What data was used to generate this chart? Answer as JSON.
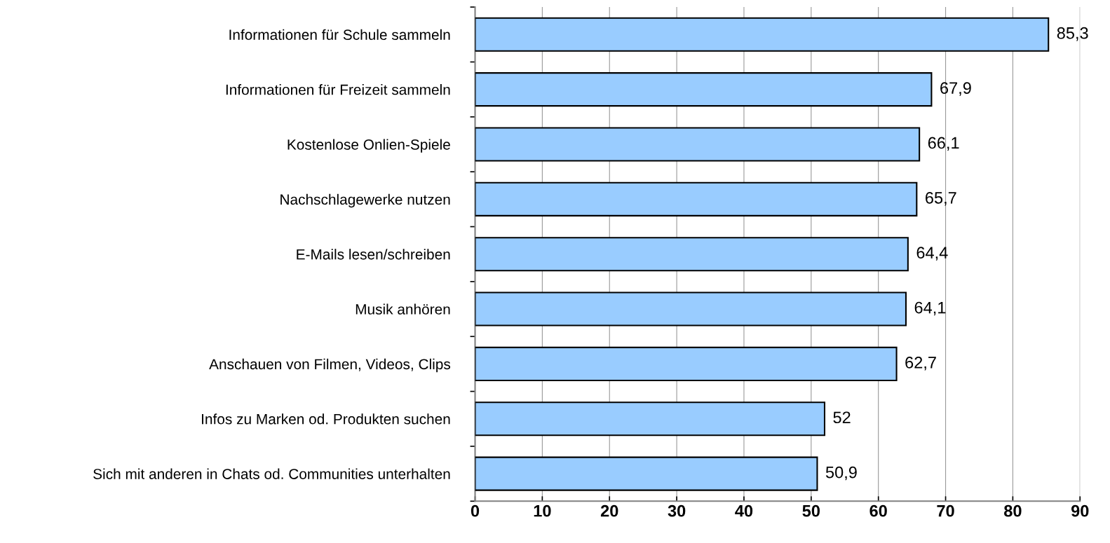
{
  "chart_data": {
    "type": "bar",
    "orientation": "horizontal",
    "categories": [
      "Informationen für Schule sammeln",
      "Informationen für Freizeit sammeln",
      "Kostenlose Onlien-Spiele",
      "Nachschlagewerke nutzen",
      "E-Mails lesen/schreiben",
      "Musik anhören",
      "Anschauen von Filmen, Videos, Clips",
      "Infos zu Marken od. Produkten suchen",
      "Sich mit anderen in Chats od. Communities unterhalten"
    ],
    "values": [
      85.3,
      67.9,
      66.1,
      65.7,
      64.4,
      64.1,
      62.7,
      52,
      50.9
    ],
    "value_labels": [
      "85,3",
      "67,9",
      "66,1",
      "65,7",
      "64,4",
      "64,1",
      "62,7",
      "52",
      "50,9"
    ],
    "color": "#99ccff",
    "xlim": [
      0,
      90
    ],
    "xticks": [
      0,
      10,
      20,
      30,
      40,
      50,
      60,
      70,
      80,
      90
    ],
    "grid": "x",
    "legend": false
  }
}
